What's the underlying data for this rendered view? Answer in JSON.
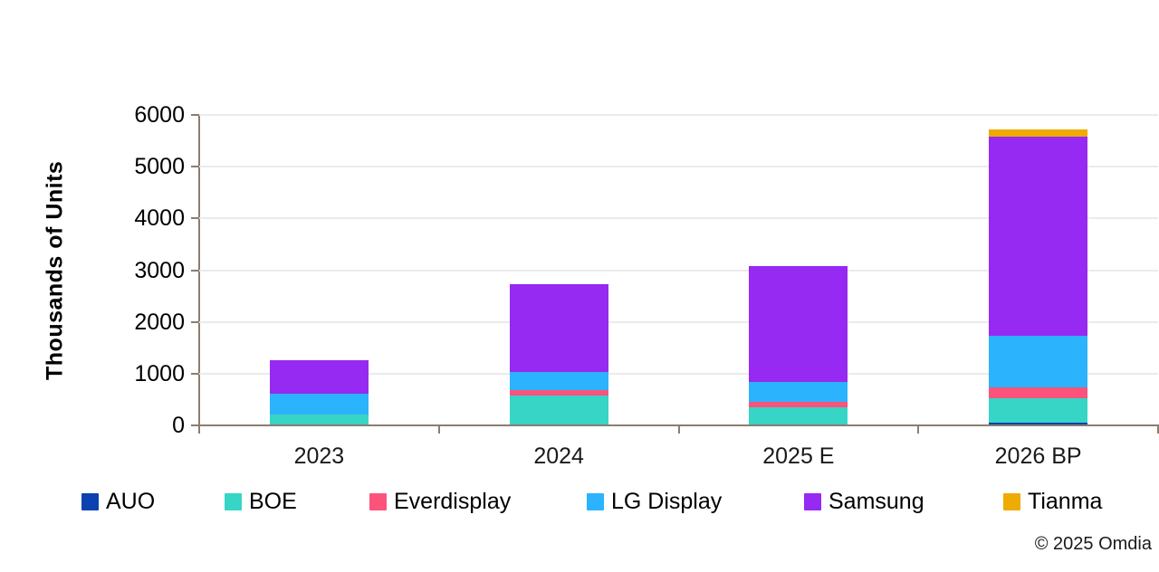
{
  "chart_data": {
    "type": "bar",
    "stacked": true,
    "title": "",
    "ylabel": "Thousands of Units",
    "categories": [
      "2023",
      "2024",
      "2025 E",
      "2026 BP"
    ],
    "series": [
      {
        "name": "AUO",
        "color": "#0D41B0",
        "values": [
          0,
          0,
          0,
          60
        ]
      },
      {
        "name": "BOE",
        "color": "#36D5C5",
        "values": [
          205,
          585,
          350,
          465
        ]
      },
      {
        "name": "Everdisplay",
        "color": "#FB537C",
        "values": [
          0,
          105,
          105,
          215
        ]
      },
      {
        "name": "LG Display",
        "color": "#2BB3FE",
        "values": [
          400,
          350,
          380,
          1000
        ]
      },
      {
        "name": "Samsung",
        "color": "#9629F2",
        "values": [
          660,
          1695,
          2240,
          3845
        ]
      },
      {
        "name": "Tianma",
        "color": "#EEAB02",
        "values": [
          0,
          0,
          0,
          140
        ]
      }
    ],
    "ylim": [
      0,
      6000
    ],
    "yticks": [
      0,
      1000,
      2000,
      3000,
      4000,
      5000,
      6000
    ],
    "grid": "horizontal",
    "legend_position": "bottom"
  },
  "footer": {
    "copyright": "© 2025 Omdia"
  },
  "styles": {
    "axis_color": "#8B7D70",
    "gridline_color": "#EBEBEB"
  }
}
